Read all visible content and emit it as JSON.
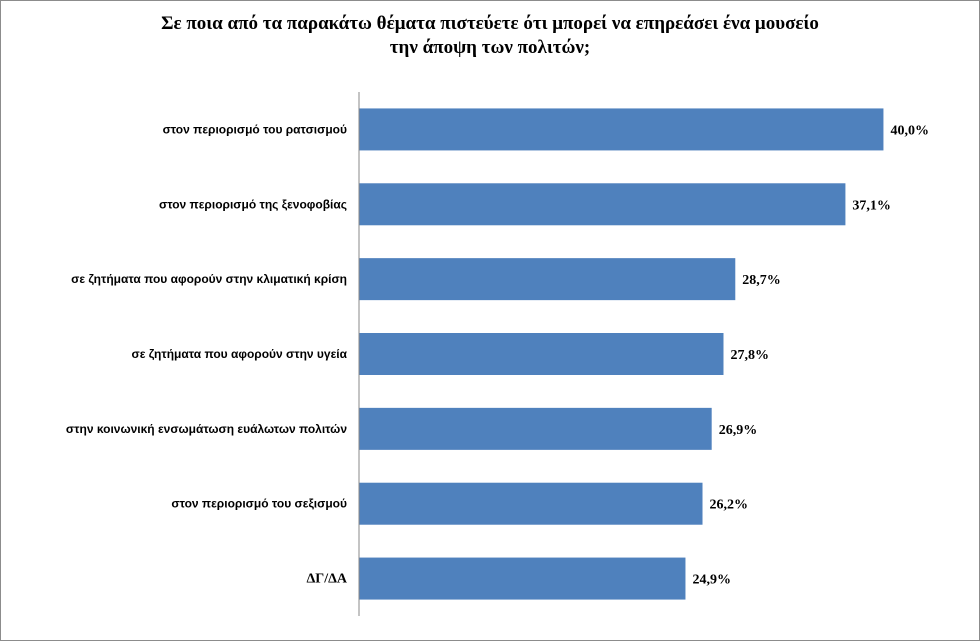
{
  "chart_data": {
    "type": "bar",
    "orientation": "horizontal",
    "title_lines": [
      "Σε ποια από τα παρακάτω θέματα πιστεύετε ότι μπορεί να επηρεάσει ένα μουσείο",
      "την άποψη των πολιτών;"
    ],
    "categories": [
      "στον περιορισμό του ρατσισμού",
      "στον περιορισμό της ξενοφοβίας",
      "σε ζητήματα που αφορούν στην κλιματική κρίση",
      "σε ζητήματα που αφορούν στην υγεία",
      "στην κοινωνική ενσωμάτωση ευάλωτων πολιτών",
      "στον περιορισμό του σεξισμού",
      "ΔΓ/ΔΑ"
    ],
    "values": [
      40.0,
      37.1,
      28.7,
      27.8,
      26.9,
      26.2,
      24.9
    ],
    "value_labels": [
      "40,0%",
      "37,1%",
      "28,7%",
      "27,8%",
      "26,9%",
      "26,2%",
      "24,9%"
    ],
    "xlim": [
      0,
      45
    ],
    "xlabel": "",
    "ylabel": "",
    "grid": false,
    "legend": "none",
    "bar_color": "#4f81bd"
  }
}
